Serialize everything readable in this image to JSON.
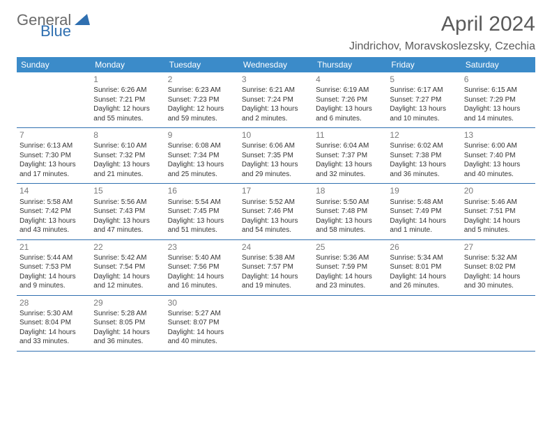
{
  "logo": {
    "text1": "General",
    "text2": "Blue"
  },
  "title": "April 2024",
  "location": "Jindrichov, Moravskoslezsky, Czechia",
  "colors": {
    "header_bg": "#3b8bc9",
    "header_text": "#ffffff",
    "row_border": "#2f6fb0",
    "daynum": "#7a7a7a",
    "body_text": "#333333",
    "logo_gray": "#6a6a6a",
    "logo_blue": "#2f6fb0",
    "title_color": "#5a5a5a"
  },
  "day_headers": [
    "Sunday",
    "Monday",
    "Tuesday",
    "Wednesday",
    "Thursday",
    "Friday",
    "Saturday"
  ],
  "weeks": [
    [
      null,
      {
        "n": "1",
        "sr": "Sunrise: 6:26 AM",
        "ss": "Sunset: 7:21 PM",
        "d1": "Daylight: 12 hours",
        "d2": "and 55 minutes."
      },
      {
        "n": "2",
        "sr": "Sunrise: 6:23 AM",
        "ss": "Sunset: 7:23 PM",
        "d1": "Daylight: 12 hours",
        "d2": "and 59 minutes."
      },
      {
        "n": "3",
        "sr": "Sunrise: 6:21 AM",
        "ss": "Sunset: 7:24 PM",
        "d1": "Daylight: 13 hours",
        "d2": "and 2 minutes."
      },
      {
        "n": "4",
        "sr": "Sunrise: 6:19 AM",
        "ss": "Sunset: 7:26 PM",
        "d1": "Daylight: 13 hours",
        "d2": "and 6 minutes."
      },
      {
        "n": "5",
        "sr": "Sunrise: 6:17 AM",
        "ss": "Sunset: 7:27 PM",
        "d1": "Daylight: 13 hours",
        "d2": "and 10 minutes."
      },
      {
        "n": "6",
        "sr": "Sunrise: 6:15 AM",
        "ss": "Sunset: 7:29 PM",
        "d1": "Daylight: 13 hours",
        "d2": "and 14 minutes."
      }
    ],
    [
      {
        "n": "7",
        "sr": "Sunrise: 6:13 AM",
        "ss": "Sunset: 7:30 PM",
        "d1": "Daylight: 13 hours",
        "d2": "and 17 minutes."
      },
      {
        "n": "8",
        "sr": "Sunrise: 6:10 AM",
        "ss": "Sunset: 7:32 PM",
        "d1": "Daylight: 13 hours",
        "d2": "and 21 minutes."
      },
      {
        "n": "9",
        "sr": "Sunrise: 6:08 AM",
        "ss": "Sunset: 7:34 PM",
        "d1": "Daylight: 13 hours",
        "d2": "and 25 minutes."
      },
      {
        "n": "10",
        "sr": "Sunrise: 6:06 AM",
        "ss": "Sunset: 7:35 PM",
        "d1": "Daylight: 13 hours",
        "d2": "and 29 minutes."
      },
      {
        "n": "11",
        "sr": "Sunrise: 6:04 AM",
        "ss": "Sunset: 7:37 PM",
        "d1": "Daylight: 13 hours",
        "d2": "and 32 minutes."
      },
      {
        "n": "12",
        "sr": "Sunrise: 6:02 AM",
        "ss": "Sunset: 7:38 PM",
        "d1": "Daylight: 13 hours",
        "d2": "and 36 minutes."
      },
      {
        "n": "13",
        "sr": "Sunrise: 6:00 AM",
        "ss": "Sunset: 7:40 PM",
        "d1": "Daylight: 13 hours",
        "d2": "and 40 minutes."
      }
    ],
    [
      {
        "n": "14",
        "sr": "Sunrise: 5:58 AM",
        "ss": "Sunset: 7:42 PM",
        "d1": "Daylight: 13 hours",
        "d2": "and 43 minutes."
      },
      {
        "n": "15",
        "sr": "Sunrise: 5:56 AM",
        "ss": "Sunset: 7:43 PM",
        "d1": "Daylight: 13 hours",
        "d2": "and 47 minutes."
      },
      {
        "n": "16",
        "sr": "Sunrise: 5:54 AM",
        "ss": "Sunset: 7:45 PM",
        "d1": "Daylight: 13 hours",
        "d2": "and 51 minutes."
      },
      {
        "n": "17",
        "sr": "Sunrise: 5:52 AM",
        "ss": "Sunset: 7:46 PM",
        "d1": "Daylight: 13 hours",
        "d2": "and 54 minutes."
      },
      {
        "n": "18",
        "sr": "Sunrise: 5:50 AM",
        "ss": "Sunset: 7:48 PM",
        "d1": "Daylight: 13 hours",
        "d2": "and 58 minutes."
      },
      {
        "n": "19",
        "sr": "Sunrise: 5:48 AM",
        "ss": "Sunset: 7:49 PM",
        "d1": "Daylight: 14 hours",
        "d2": "and 1 minute."
      },
      {
        "n": "20",
        "sr": "Sunrise: 5:46 AM",
        "ss": "Sunset: 7:51 PM",
        "d1": "Daylight: 14 hours",
        "d2": "and 5 minutes."
      }
    ],
    [
      {
        "n": "21",
        "sr": "Sunrise: 5:44 AM",
        "ss": "Sunset: 7:53 PM",
        "d1": "Daylight: 14 hours",
        "d2": "and 9 minutes."
      },
      {
        "n": "22",
        "sr": "Sunrise: 5:42 AM",
        "ss": "Sunset: 7:54 PM",
        "d1": "Daylight: 14 hours",
        "d2": "and 12 minutes."
      },
      {
        "n": "23",
        "sr": "Sunrise: 5:40 AM",
        "ss": "Sunset: 7:56 PM",
        "d1": "Daylight: 14 hours",
        "d2": "and 16 minutes."
      },
      {
        "n": "24",
        "sr": "Sunrise: 5:38 AM",
        "ss": "Sunset: 7:57 PM",
        "d1": "Daylight: 14 hours",
        "d2": "and 19 minutes."
      },
      {
        "n": "25",
        "sr": "Sunrise: 5:36 AM",
        "ss": "Sunset: 7:59 PM",
        "d1": "Daylight: 14 hours",
        "d2": "and 23 minutes."
      },
      {
        "n": "26",
        "sr": "Sunrise: 5:34 AM",
        "ss": "Sunset: 8:01 PM",
        "d1": "Daylight: 14 hours",
        "d2": "and 26 minutes."
      },
      {
        "n": "27",
        "sr": "Sunrise: 5:32 AM",
        "ss": "Sunset: 8:02 PM",
        "d1": "Daylight: 14 hours",
        "d2": "and 30 minutes."
      }
    ],
    [
      {
        "n": "28",
        "sr": "Sunrise: 5:30 AM",
        "ss": "Sunset: 8:04 PM",
        "d1": "Daylight: 14 hours",
        "d2": "and 33 minutes."
      },
      {
        "n": "29",
        "sr": "Sunrise: 5:28 AM",
        "ss": "Sunset: 8:05 PM",
        "d1": "Daylight: 14 hours",
        "d2": "and 36 minutes."
      },
      {
        "n": "30",
        "sr": "Sunrise: 5:27 AM",
        "ss": "Sunset: 8:07 PM",
        "d1": "Daylight: 14 hours",
        "d2": "and 40 minutes."
      },
      null,
      null,
      null,
      null
    ]
  ]
}
